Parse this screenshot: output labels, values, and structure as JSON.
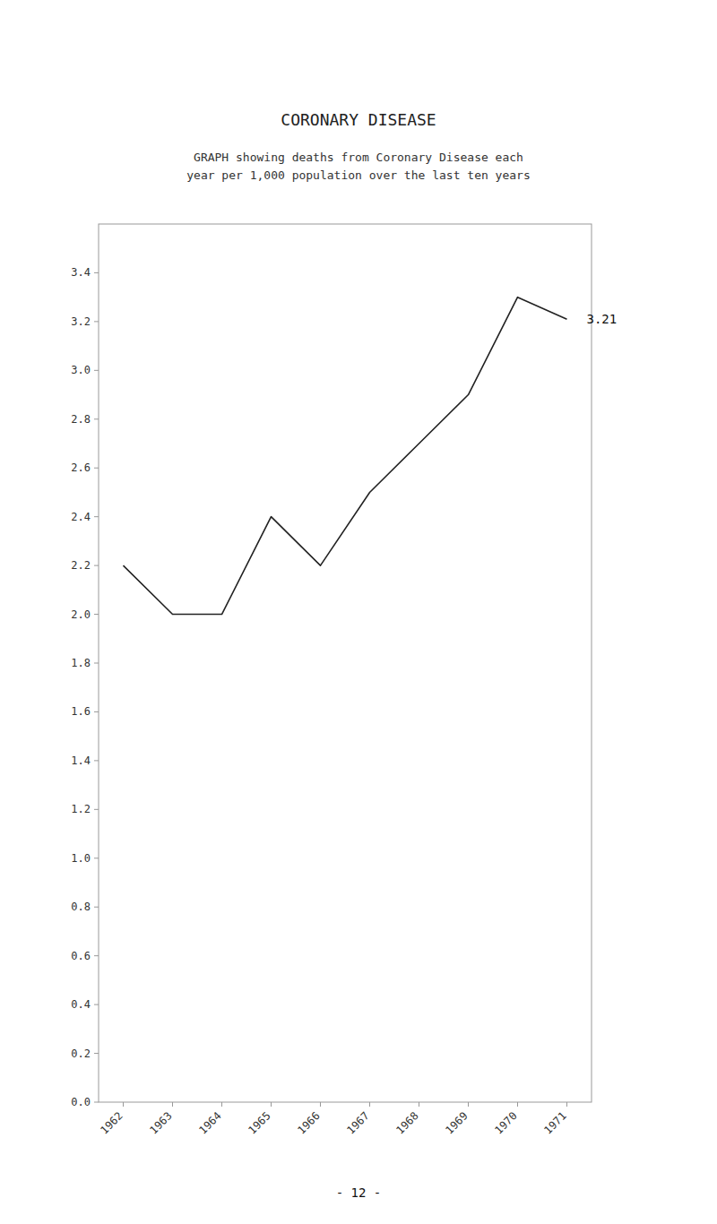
{
  "chart_data": {
    "type": "line",
    "title": "CORONARY DISEASE",
    "subtitle": [
      "GRAPH showing deaths from Coronary Disease each",
      "year per 1,000 population over the last ten years"
    ],
    "x": [
      1962,
      1963,
      1964,
      1965,
      1966,
      1967,
      1968,
      1969,
      1970,
      1971
    ],
    "values": [
      2.2,
      2.0,
      2.0,
      2.4,
      2.2,
      2.5,
      2.7,
      2.9,
      3.3,
      3.21
    ],
    "color": "#222222",
    "xlim": [
      1961.5,
      1971.5
    ],
    "xticks": [
      1962,
      1963,
      1964,
      1965,
      1966,
      1967,
      1968,
      1969,
      1970,
      1971
    ],
    "ylim": [
      0.0,
      3.6
    ],
    "yticks": [
      {
        "value": 0.0,
        "label": "0.0"
      },
      0.2,
      0.4,
      0.6,
      0.8,
      {
        "value": 1.0,
        "label": "1.0"
      },
      1.2,
      1.4,
      1.6,
      1.8,
      {
        "value": 2.0,
        "label": "2.0"
      },
      2.2,
      2.4,
      2.6,
      2.8,
      {
        "value": 3.0,
        "label": "3.0"
      },
      3.2,
      3.4
    ],
    "annotations": [
      {
        "text": "3.21"
      }
    ],
    "footer": "- 12 -",
    "grid": false
  }
}
